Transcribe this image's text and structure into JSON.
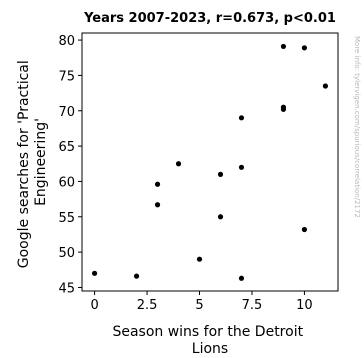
{
  "chart_data": {
    "type": "scatter",
    "title": "Years 2007-2023, r=0.673, p<0.01",
    "xlabel": [
      "Season wins for the Detroit",
      "Lions"
    ],
    "ylabel": [
      "Google searches for 'Practical",
      "Engineering'"
    ],
    "xlim": [
      -0.6,
      11.6
    ],
    "ylim": [
      44.5,
      81.0
    ],
    "xticks": [
      0,
      2.5,
      5,
      7.5,
      10
    ],
    "xtick_labels": [
      "0",
      "2.5",
      "5",
      "7.5",
      "10"
    ],
    "yticks": [
      45,
      50,
      55,
      60,
      65,
      70,
      75,
      80
    ],
    "ytick_labels": [
      "45",
      "50",
      "55",
      "60",
      "65",
      "70",
      "75",
      "80"
    ],
    "grid": false,
    "points": [
      {
        "x": 0,
        "y": 47.0
      },
      {
        "x": 2,
        "y": 46.6
      },
      {
        "x": 3,
        "y": 59.6
      },
      {
        "x": 3,
        "y": 56.7
      },
      {
        "x": 4,
        "y": 62.5
      },
      {
        "x": 5,
        "y": 49.0
      },
      {
        "x": 6,
        "y": 61.0
      },
      {
        "x": 6,
        "y": 55.0
      },
      {
        "x": 7,
        "y": 69.0
      },
      {
        "x": 7,
        "y": 62.0
      },
      {
        "x": 7,
        "y": 46.3
      },
      {
        "x": 9,
        "y": 79.1
      },
      {
        "x": 9,
        "y": 70.5
      },
      {
        "x": 9,
        "y": 70.2
      },
      {
        "x": 10,
        "y": 78.9
      },
      {
        "x": 10,
        "y": 53.2
      },
      {
        "x": 11,
        "y": 73.5
      }
    ],
    "point_color": "#000000"
  },
  "watermark": "More info: tylervigen.com/spurious/correlation/2172"
}
